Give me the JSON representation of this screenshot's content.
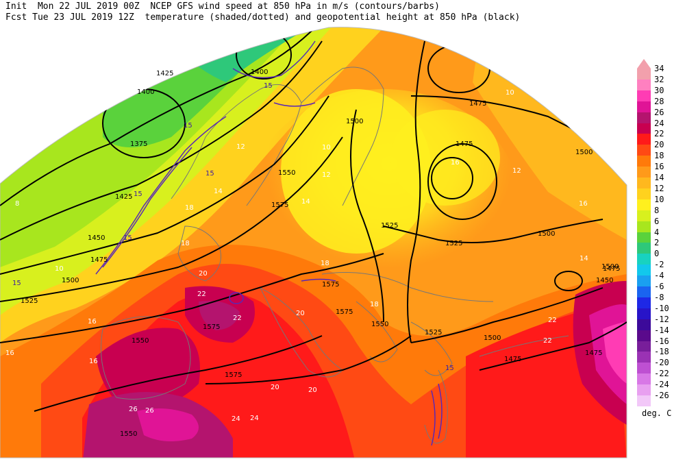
{
  "header": {
    "line1": "Init  Mon 22 JUL 2019 00Z  NCEP GFS wind speed at 850 hPa in m/s (contours/barbs)",
    "line2": "Fcst Tue 23 JUL 2019 12Z  temperature (shaded/dotted) and geopotential height at 850 hPa (black)"
  },
  "colorbar": {
    "units": "deg. C",
    "levels": [
      {
        "label": "34",
        "color": "#f2a0ac"
      },
      {
        "label": "32",
        "color": "#ff80c0"
      },
      {
        "label": "30",
        "color": "#ff3cb4"
      },
      {
        "label": "28",
        "color": "#e01496"
      },
      {
        "label": "26",
        "color": "#b4146e"
      },
      {
        "label": "24",
        "color": "#c80050"
      },
      {
        "label": "22",
        "color": "#ff1a1a"
      },
      {
        "label": "20",
        "color": "#ff4a14"
      },
      {
        "label": "18",
        "color": "#ff7a0a"
      },
      {
        "label": "16",
        "color": "#ff9a1a"
      },
      {
        "label": "14",
        "color": "#ffb81e"
      },
      {
        "label": "12",
        "color": "#ffd21e"
      },
      {
        "label": "10",
        "color": "#fff01e"
      },
      {
        "label": "8",
        "color": "#d8f01e"
      },
      {
        "label": "6",
        "color": "#a8e61e"
      },
      {
        "label": "4",
        "color": "#5ad23c"
      },
      {
        "label": "2",
        "color": "#2ec87a"
      },
      {
        "label": "0",
        "color": "#18d2c0"
      },
      {
        "label": "-2",
        "color": "#12c8ec"
      },
      {
        "label": "-4",
        "color": "#1aa0f0"
      },
      {
        "label": "-6",
        "color": "#1a64f0"
      },
      {
        "label": "-8",
        "color": "#1e28e6"
      },
      {
        "label": "-10",
        "color": "#2814c8"
      },
      {
        "label": "-12",
        "color": "#3c0a9a"
      },
      {
        "label": "-14",
        "color": "#5a0a8c"
      },
      {
        "label": "-16",
        "color": "#781e9a"
      },
      {
        "label": "-18",
        "color": "#9a32b4"
      },
      {
        "label": "-20",
        "color": "#be50d2"
      },
      {
        "label": "-22",
        "color": "#d878e6"
      },
      {
        "label": "-24",
        "color": "#e8a0f0"
      },
      {
        "label": "-26",
        "color": "#f2c8f8"
      }
    ]
  },
  "height_labels": [
    "1425",
    "1400",
    "1400",
    "1375",
    "1425",
    "1450",
    "1475",
    "1500",
    "1525",
    "1550",
    "1575",
    "1575",
    "1550",
    "1575",
    "1550",
    "1575",
    "1575",
    "1500",
    "1525",
    "1525",
    "1550",
    "1525",
    "1500",
    "1500",
    "1500",
    "1475",
    "1475",
    "1475",
    "1500",
    "1475",
    "1450",
    "1475"
  ],
  "wind_labels": [
    "15",
    "15",
    "15",
    "15",
    "15",
    "15",
    "15"
  ],
  "temp_labels": [
    "8",
    "10",
    "12",
    "14",
    "16",
    "18",
    "20",
    "22",
    "24",
    "26",
    "10",
    "12",
    "14",
    "16",
    "18",
    "20",
    "22",
    "24",
    "16",
    "18",
    "20",
    "22",
    "26",
    "16",
    "14",
    "12",
    "10",
    "16",
    "18",
    "20",
    "22"
  ]
}
